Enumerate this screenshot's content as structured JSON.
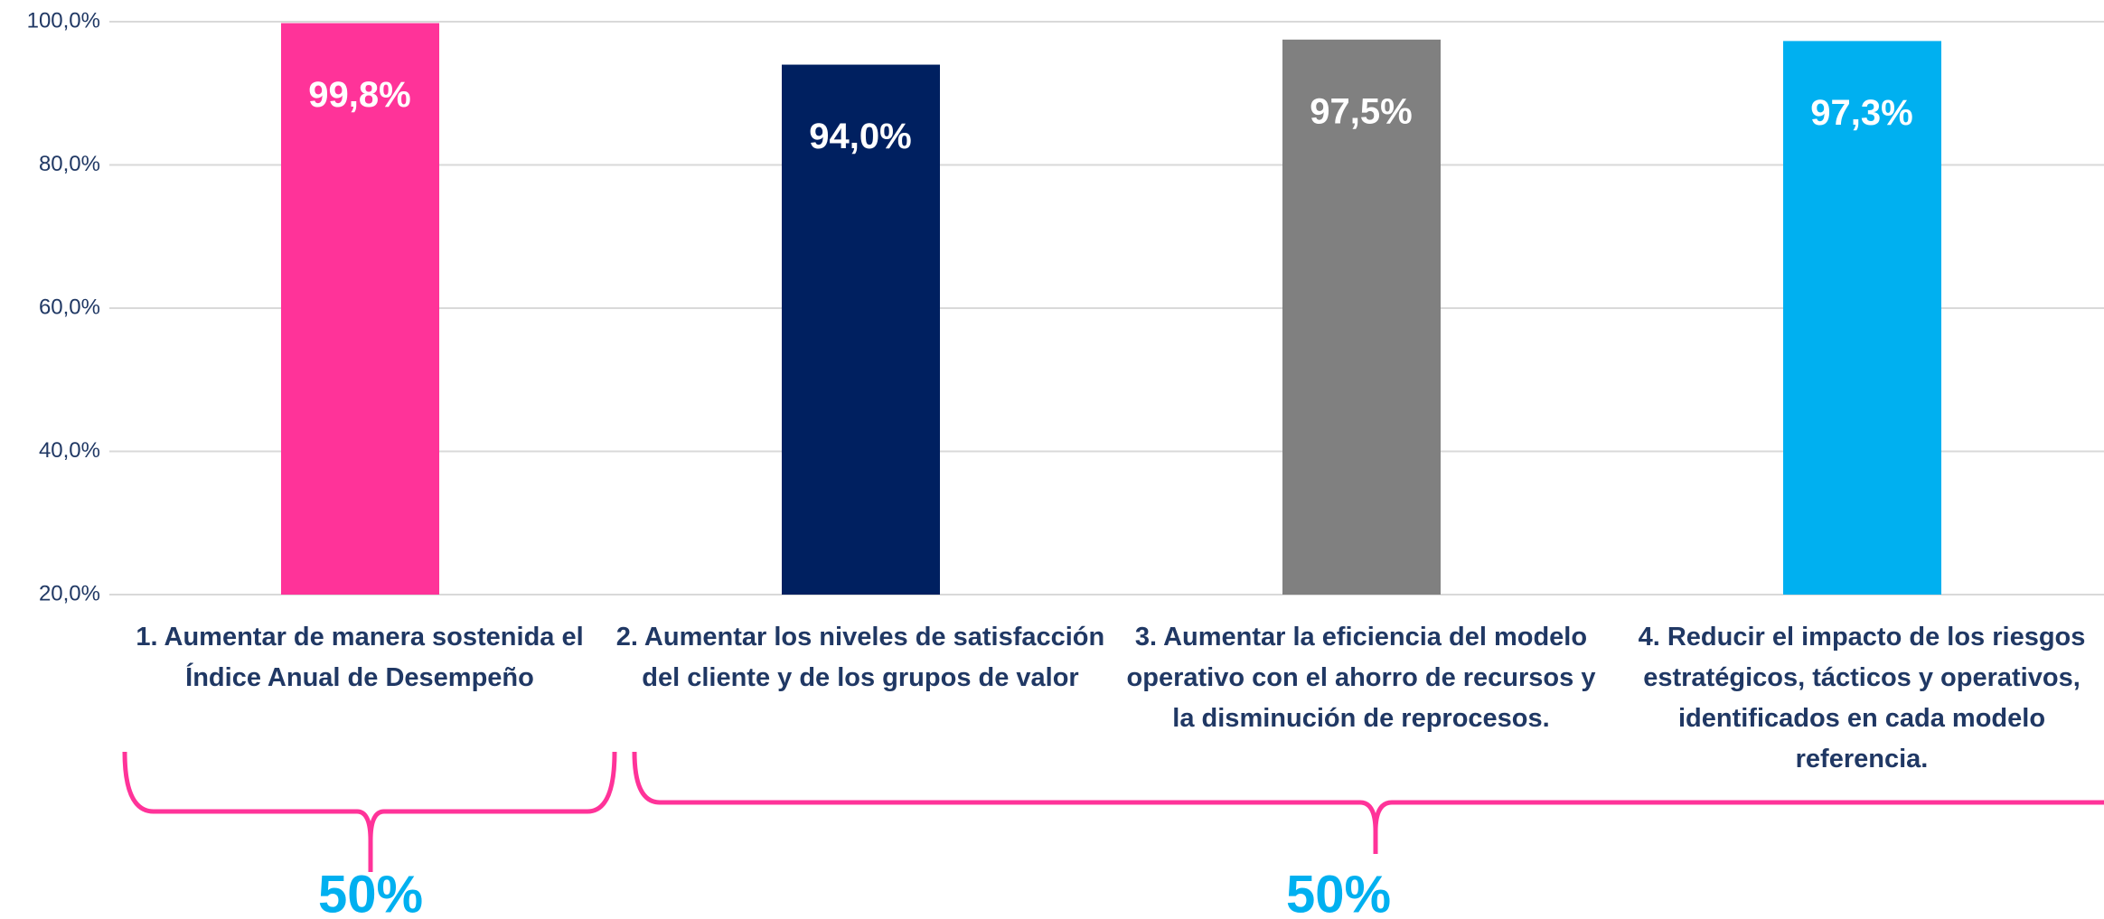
{
  "chart_data": {
    "type": "bar",
    "categories": [
      "1. Aumentar de manera sostenida el Índice Anual de Desempeño",
      "2. Aumentar los niveles de satisfacción del cliente y de los grupos de valor",
      "3. Aumentar la eficiencia del modelo operativo con el ahorro de recursos y la disminución de reprocesos.",
      "4. Reducir el impacto de los riesgos estratégicos, tácticos y operativos, identificados en cada modelo referencia."
    ],
    "values": [
      99.8,
      94.0,
      97.5,
      97.3
    ],
    "value_labels": [
      "99,8%",
      "94,0%",
      "97,5%",
      "97,3%"
    ],
    "colors": [
      "#ff3399",
      "#002060",
      "#808080",
      "#00b0f0"
    ],
    "ylim": [
      20,
      100
    ],
    "yticks": [
      {
        "value": 20,
        "label": "20,0%"
      },
      {
        "value": 40,
        "label": "40,0%"
      },
      {
        "value": 60,
        "label": "60,0%"
      },
      {
        "value": 80,
        "label": "80,0%"
      },
      {
        "value": 100,
        "label": "100,0%"
      }
    ],
    "grid": true,
    "annotations": [
      "50%",
      "50%"
    ]
  }
}
